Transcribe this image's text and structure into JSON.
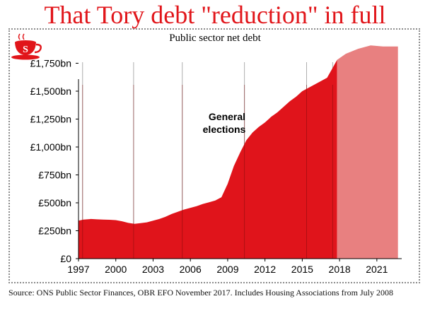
{
  "headline": "That Tory debt \"reduction\" in full",
  "logo": {
    "icon": "teacup-icon",
    "letter": "S",
    "color": "#e1151a"
  },
  "source": "Source: ONS Public Sector Finances, OBR EFO November 2017. Includes Housing Associations from July 2008",
  "colors": {
    "actual": "#e0141b",
    "forecast": "#e88080",
    "headline": "#e1151a"
  },
  "chart_data": {
    "type": "area",
    "title": "Public sector net debt",
    "xlabel": "",
    "ylabel": "",
    "xlim": [
      1997,
      2023
    ],
    "ylim": [
      0,
      2000
    ],
    "x_ticks": [
      1997,
      2000,
      2003,
      2006,
      2009,
      2012,
      2015,
      2018,
      2021
    ],
    "x_tick_labels": [
      "1997",
      "2000",
      "2003",
      "2006",
      "2009",
      "2012",
      "2015",
      "2018",
      "2021"
    ],
    "y_ticks": [
      0,
      250,
      500,
      750,
      1000,
      1250,
      1500,
      1750
    ],
    "y_tick_labels": [
      "£0",
      "£250bn",
      "£500bn",
      "£750bn",
      "£1,000bn",
      "£1,250bn",
      "£1,500bn",
      "£1,750bn"
    ],
    "election_years": [
      1997.33,
      2001.43,
      2005.35,
      2010.35,
      2015.35,
      2017.44
    ],
    "annotation": "General elections",
    "series": [
      {
        "kind": "actual",
        "x": [
          1997.0,
          1997.4,
          1998.0,
          1998.5,
          1999.0,
          1999.5,
          2000.0,
          2000.5,
          2001.0,
          2001.5,
          2002.0,
          2002.5,
          2003.0,
          2003.5,
          2004.0,
          2004.5,
          2005.0,
          2005.5,
          2006.0,
          2006.5,
          2007.0,
          2007.5,
          2008.0,
          2008.5,
          2009.0,
          2009.5,
          2010.0,
          2010.5,
          2011.0,
          2011.5,
          2012.0,
          2012.5,
          2013.0,
          2013.5,
          2014.0,
          2014.5,
          2015.0,
          2015.5,
          2016.0,
          2016.5,
          2017.0,
          2017.4,
          2017.8
        ],
        "values": [
          340,
          350,
          355,
          352,
          350,
          348,
          345,
          335,
          320,
          312,
          318,
          325,
          340,
          355,
          375,
          400,
          420,
          440,
          455,
          470,
          490,
          505,
          520,
          550,
          670,
          830,
          950,
          1060,
          1130,
          1180,
          1220,
          1270,
          1310,
          1360,
          1410,
          1450,
          1500,
          1530,
          1560,
          1590,
          1620,
          1700,
          1780
        ]
      },
      {
        "kind": "forecast",
        "x": [
          2017.8,
          2018.5,
          2019.5,
          2020.5,
          2021.5,
          2022.7
        ],
        "values": [
          1780,
          1835,
          1880,
          1910,
          1900,
          1900
        ]
      }
    ]
  }
}
